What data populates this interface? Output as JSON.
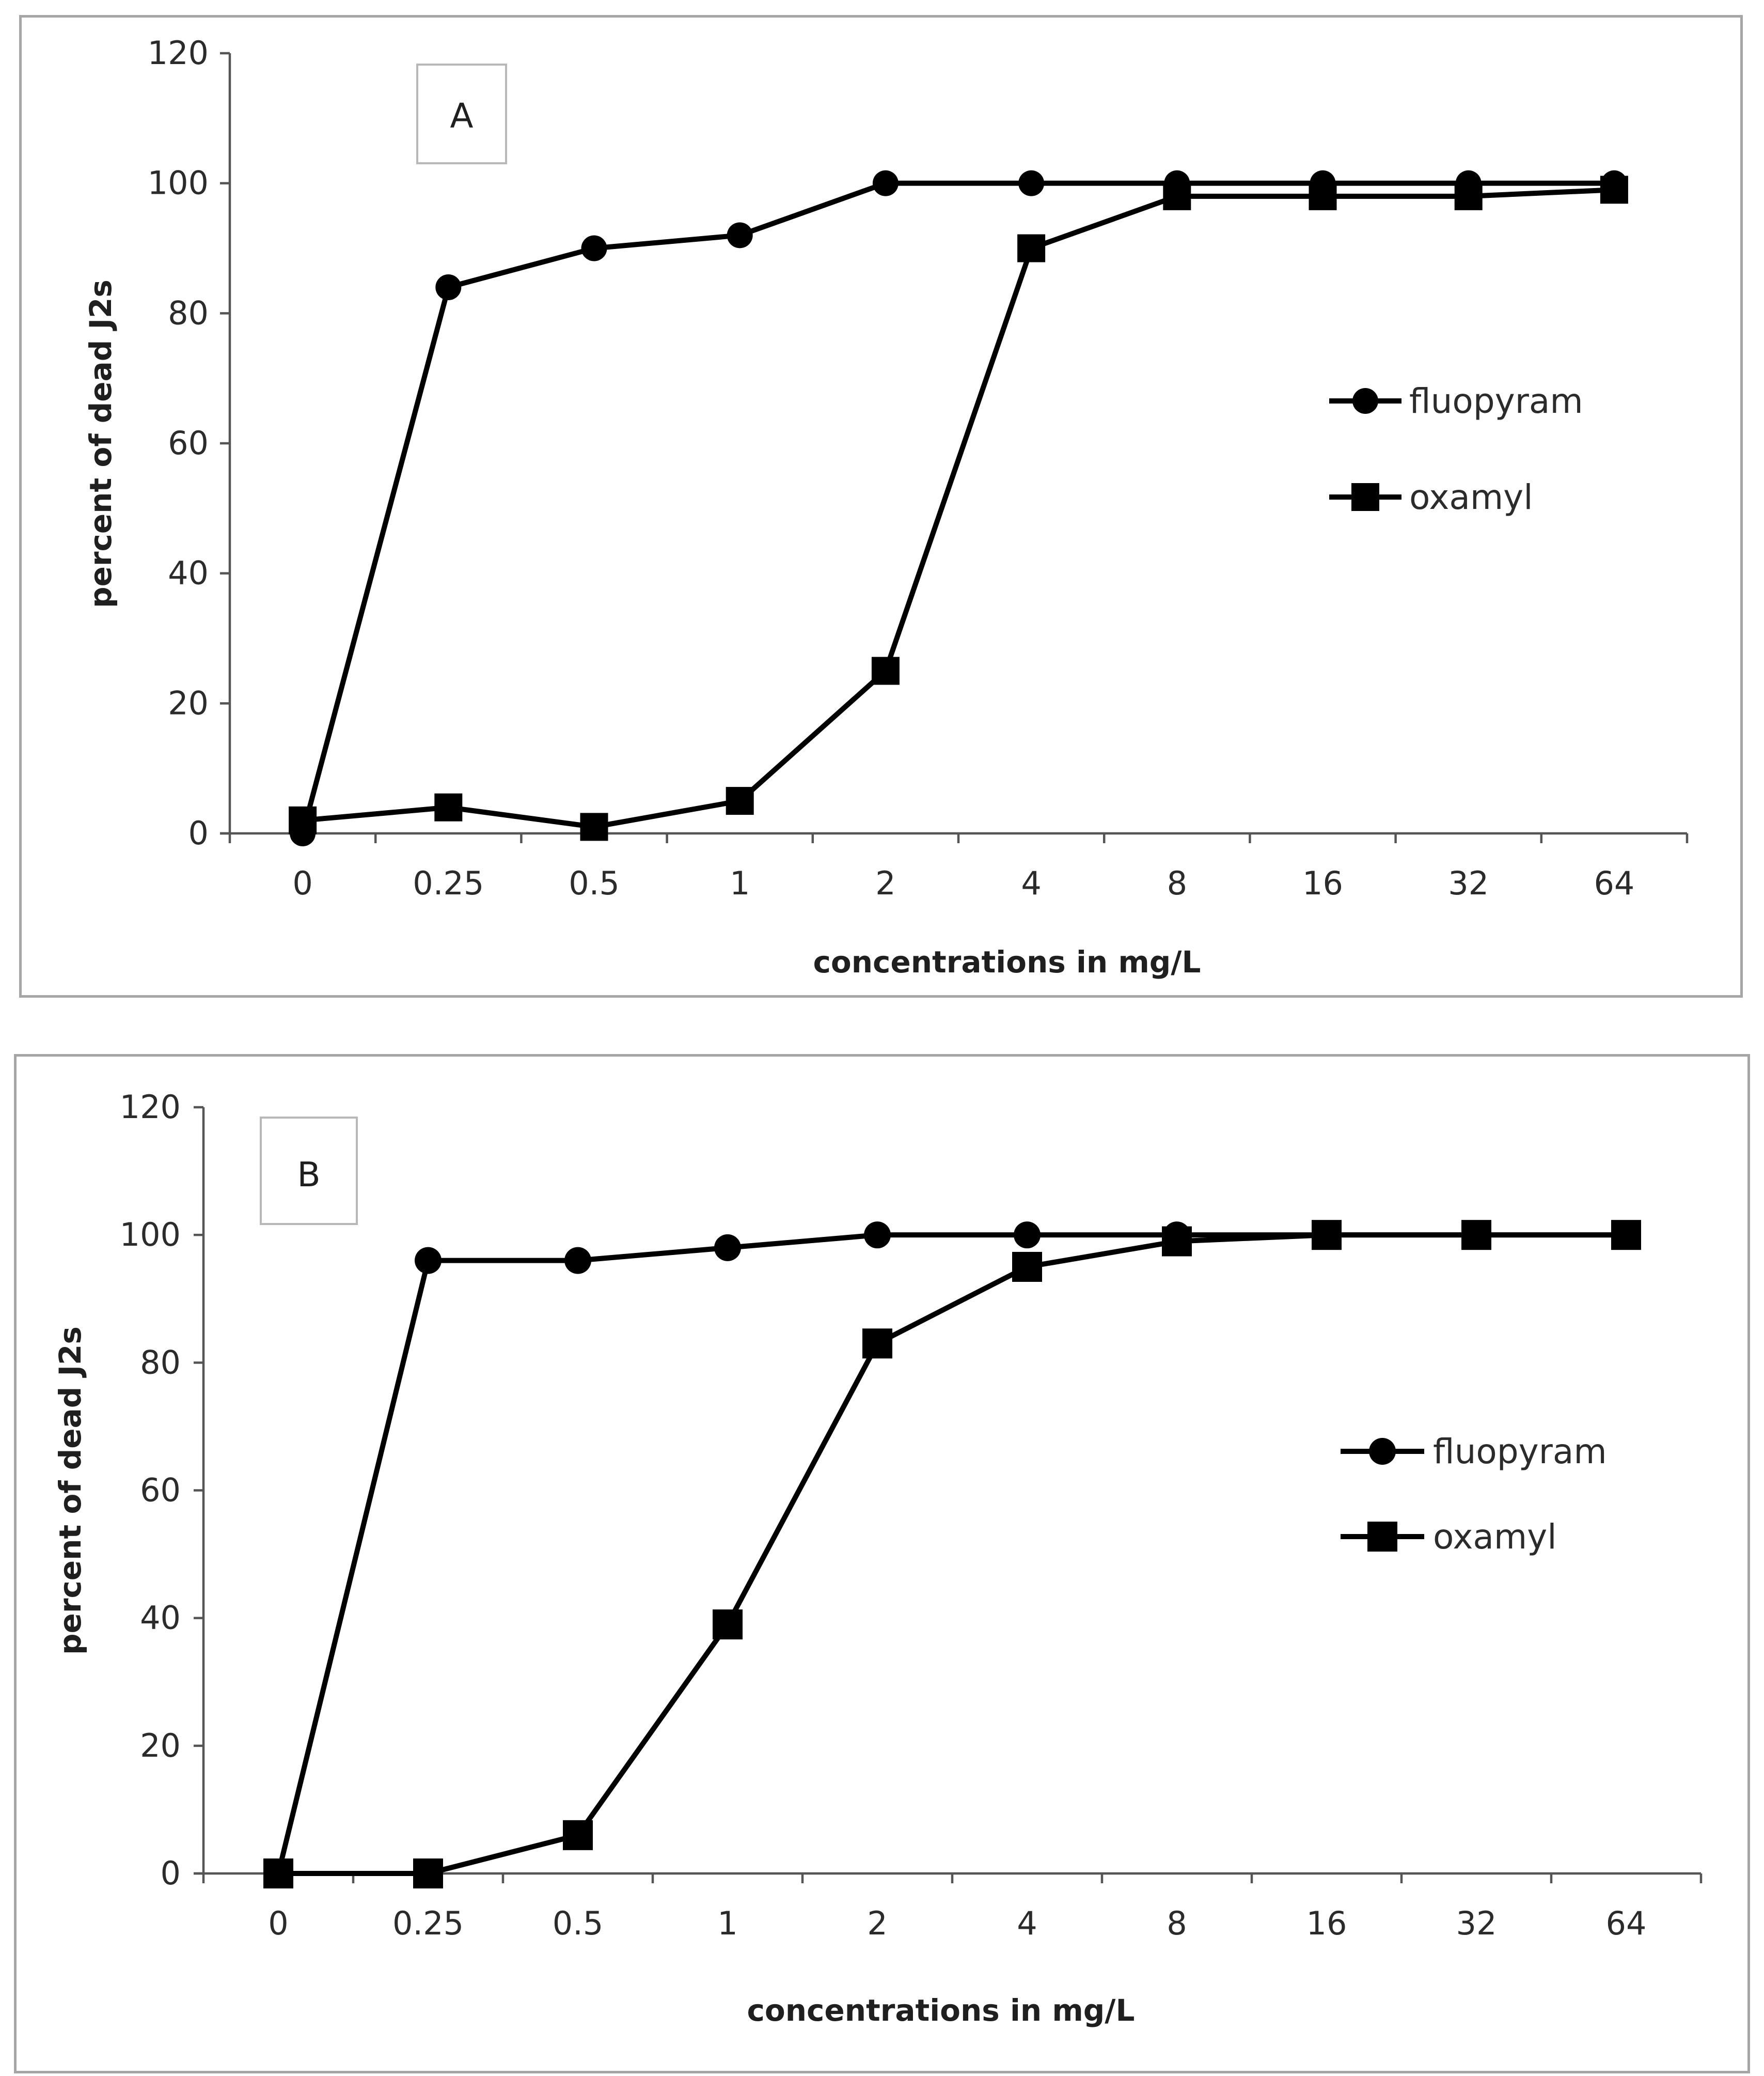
{
  "chart_data": [
    {
      "type": "line",
      "panel_label": "A",
      "categories": [
        "0",
        "0.25",
        "0.5",
        "1",
        "2",
        "4",
        "8",
        "16",
        "32",
        "64"
      ],
      "series": [
        {
          "name": "fluopyram",
          "marker": "circle",
          "values": [
            0,
            84,
            90,
            92,
            100,
            100,
            100,
            100,
            100,
            100
          ]
        },
        {
          "name": "oxamyl",
          "marker": "square",
          "values": [
            2,
            4,
            1,
            5,
            25,
            90,
            98,
            98,
            98,
            99
          ]
        }
      ],
      "yticks": [
        "0",
        "20",
        "40",
        "60",
        "80",
        "100",
        "120"
      ],
      "xlabel": "concentrations in mg/L",
      "ylabel": "percent of dead J2s",
      "ylim": [
        0,
        120
      ],
      "grid": false,
      "legend_position": "right"
    },
    {
      "type": "line",
      "panel_label": "B",
      "categories": [
        "0",
        "0.25",
        "0.5",
        "1",
        "2",
        "4",
        "8",
        "16",
        "32",
        "64"
      ],
      "series": [
        {
          "name": "fluopyram",
          "marker": "circle",
          "values": [
            0,
            96,
            96,
            98,
            100,
            100,
            100,
            100,
            100,
            100
          ]
        },
        {
          "name": "oxamyl",
          "marker": "square",
          "values": [
            0,
            0,
            6,
            39,
            83,
            95,
            99,
            100,
            100,
            100
          ]
        }
      ],
      "yticks": [
        "0",
        "20",
        "40",
        "60",
        "80",
        "100",
        "120"
      ],
      "xlabel": "concentrations in mg/L",
      "ylabel": "percent of dead J2s",
      "ylim": [
        0,
        120
      ],
      "grid": false,
      "legend_position": "right"
    }
  ]
}
